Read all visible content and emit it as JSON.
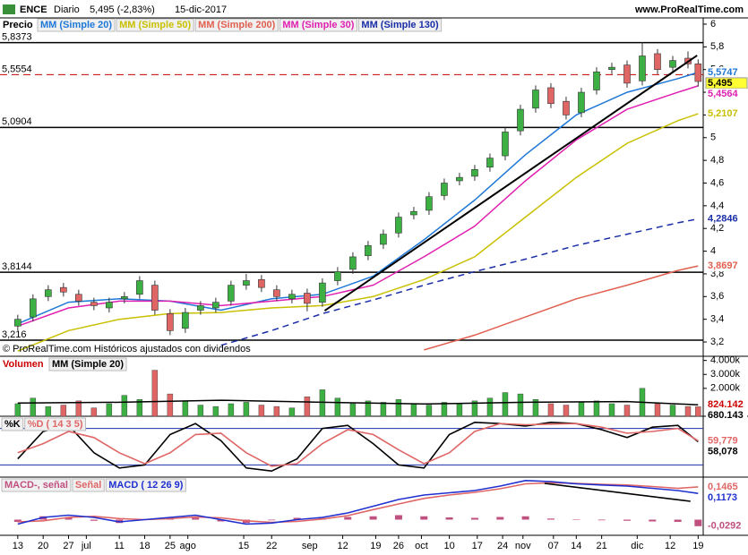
{
  "header": {
    "symbol": "ENCE",
    "period": "Diario",
    "price": "5,495 (-2,83%)",
    "date": "15-dic-2017",
    "site": "www.ProRealTime.com",
    "copyright": "© ProRealTime.com Históricos ajustados con dividendos"
  },
  "x_axis": {
    "xlim": [
      -0.7,
      27.0
    ],
    "xticks": [
      {
        "value": 0,
        "label": "13"
      },
      {
        "value": 1,
        "label": "20"
      },
      {
        "value": 2,
        "label": "27"
      },
      {
        "value": 2.7,
        "label": "jul"
      },
      {
        "value": 4,
        "label": "11"
      },
      {
        "value": 5,
        "label": "18"
      },
      {
        "value": 6,
        "label": "25"
      },
      {
        "value": 6.7,
        "label": "ago"
      },
      {
        "value": 8.9,
        "label": "15"
      },
      {
        "value": 10,
        "label": "22"
      },
      {
        "value": 11.5,
        "label": "sep"
      },
      {
        "value": 12.8,
        "label": "12"
      },
      {
        "value": 14.1,
        "label": "19"
      },
      {
        "value": 15,
        "label": "26"
      },
      {
        "value": 15.9,
        "label": "oct"
      },
      {
        "value": 17,
        "label": "10"
      },
      {
        "value": 18.1,
        "label": "17"
      },
      {
        "value": 19.1,
        "label": "24"
      },
      {
        "value": 19.9,
        "label": "nov"
      },
      {
        "value": 21.1,
        "label": "07"
      },
      {
        "value": 22,
        "label": "14"
      },
      {
        "value": 23,
        "label": "21"
      },
      {
        "value": 24.4,
        "label": "dic"
      },
      {
        "value": 25.7,
        "label": "12"
      },
      {
        "value": 26.8,
        "label": "19"
      }
    ]
  },
  "chart_data": [
    {
      "type": "candlestick",
      "title": "Precio",
      "up_color": "#3cb043",
      "down_color": "#e06666",
      "ylim": [
        3.074,
        6.055
      ],
      "yticks": [
        {
          "value": 3.2,
          "label": "3,2"
        },
        {
          "value": 3.4,
          "label": "3,4"
        },
        {
          "value": 3.6,
          "label": "3,6"
        },
        {
          "value": 3.8,
          "label": "3,8"
        },
        {
          "value": 4,
          "label": "4"
        },
        {
          "value": 4.2,
          "label": "4,2"
        },
        {
          "value": 4.4,
          "label": "4,4"
        },
        {
          "value": 4.6,
          "label": "4,6"
        },
        {
          "value": 4.8,
          "label": "4,8"
        },
        {
          "value": 5,
          "label": "5"
        },
        {
          "value": 5.2,
          "label": "5,2"
        },
        {
          "value": 5.4,
          "label": "5,4"
        },
        {
          "value": 5.6,
          "label": "5,6"
        },
        {
          "value": 5.8,
          "label": "5,8"
        },
        {
          "value": 6,
          "label": "6"
        }
      ],
      "x": [
        0,
        0.6,
        1.2,
        1.8,
        2.4,
        3,
        3.6,
        4.2,
        4.8,
        5.4,
        6,
        6.6,
        7.2,
        7.8,
        8.4,
        9,
        9.6,
        10.2,
        10.8,
        11.4,
        12,
        12.6,
        13.2,
        13.8,
        14.4,
        15,
        15.6,
        16.2,
        16.8,
        17.4,
        18,
        18.6,
        19.2,
        19.8,
        20.4,
        21,
        21.6,
        22.2,
        22.8,
        23.4,
        24,
        24.6,
        25.2,
        25.8,
        26.4,
        26.8
      ],
      "open": [
        3.34,
        3.42,
        3.6,
        3.68,
        3.62,
        3.55,
        3.5,
        3.58,
        3.62,
        3.7,
        3.45,
        3.32,
        3.48,
        3.5,
        3.56,
        3.7,
        3.75,
        3.66,
        3.58,
        3.63,
        3.55,
        3.74,
        3.84,
        3.96,
        4.06,
        4.16,
        4.32,
        4.36,
        4.49,
        4.62,
        4.66,
        4.74,
        4.84,
        5.06,
        5.26,
        5.44,
        5.32,
        5.22,
        5.42,
        5.6,
        5.64,
        5.5,
        5.74,
        5.62,
        5.7,
        5.65
      ],
      "high": [
        3.44,
        3.62,
        3.7,
        3.72,
        3.66,
        3.59,
        3.59,
        3.64,
        3.78,
        3.74,
        3.49,
        3.5,
        3.56,
        3.59,
        3.74,
        3.8,
        3.79,
        3.7,
        3.66,
        3.67,
        3.76,
        3.86,
        3.99,
        4.09,
        4.19,
        4.34,
        4.39,
        4.52,
        4.64,
        4.69,
        4.76,
        4.86,
        5.09,
        5.29,
        5.46,
        5.48,
        5.36,
        5.44,
        5.62,
        5.66,
        5.68,
        5.84,
        5.78,
        5.72,
        5.76,
        5.69
      ],
      "low": [
        3.3,
        3.38,
        3.56,
        3.6,
        3.52,
        3.48,
        3.46,
        3.54,
        3.58,
        3.44,
        3.26,
        3.28,
        3.44,
        3.46,
        3.52,
        3.66,
        3.64,
        3.56,
        3.54,
        3.47,
        3.51,
        3.7,
        3.8,
        3.92,
        4.02,
        4.12,
        4.28,
        4.32,
        4.45,
        4.58,
        4.62,
        4.7,
        4.8,
        5.02,
        5.22,
        5.26,
        5.16,
        5.18,
        5.38,
        5.56,
        5.44,
        5.46,
        5.56,
        5.58,
        5.61,
        5.45
      ],
      "close": [
        3.4,
        3.58,
        3.66,
        3.64,
        3.56,
        3.52,
        3.55,
        3.6,
        3.74,
        3.48,
        3.3,
        3.46,
        3.52,
        3.55,
        3.7,
        3.74,
        3.68,
        3.6,
        3.62,
        3.54,
        3.72,
        3.82,
        3.95,
        4.05,
        4.15,
        4.3,
        4.35,
        4.48,
        4.6,
        4.65,
        4.72,
        4.82,
        5.05,
        5.25,
        5.42,
        5.3,
        5.2,
        5.4,
        5.58,
        5.62,
        5.48,
        5.72,
        5.6,
        5.68,
        5.65,
        5.495
      ],
      "close_label": "5,495",
      "close_label_color": "#ffff33",
      "levels": [
        {
          "value": 5.8373,
          "label": "5,8373",
          "color": "#000000"
        },
        {
          "value": 5.5554,
          "label": "5,5554",
          "color": "#cc0000",
          "dashed": true
        },
        {
          "value": 5.0904,
          "label": "5,0904",
          "color": "#000000"
        },
        {
          "value": 3.8144,
          "label": "3,8144",
          "color": "#000000"
        },
        {
          "value": 3.216,
          "label": "3,216",
          "color": "#000000"
        }
      ],
      "series": [
        {
          "name": "MM (Simple 20)",
          "color": "#1e78d7",
          "x": [
            0,
            2,
            4,
            6,
            8,
            10,
            12,
            14,
            16,
            18,
            20,
            22,
            24,
            26,
            26.8
          ],
          "values": [
            3.36,
            3.55,
            3.58,
            3.56,
            3.48,
            3.58,
            3.62,
            3.78,
            4.1,
            4.45,
            4.85,
            5.2,
            5.4,
            5.52,
            5.5747
          ],
          "value_label": "5,5747"
        },
        {
          "name": "MM (Simple 50)",
          "color": "#c8c000",
          "x": [
            0,
            2,
            4,
            6,
            8,
            10,
            12,
            14,
            16,
            18,
            20,
            22,
            24,
            26,
            26.8
          ],
          "values": [
            3.12,
            3.3,
            3.4,
            3.45,
            3.46,
            3.5,
            3.52,
            3.6,
            3.75,
            3.95,
            4.3,
            4.65,
            4.95,
            5.15,
            5.2107
          ],
          "value_label": "5,2107"
        },
        {
          "name": "MM (Simple 200)",
          "color": "#e06050",
          "x": [
            0,
            2,
            4,
            6,
            8,
            10,
            12,
            14,
            16,
            18,
            20,
            22,
            24,
            26,
            26.8
          ],
          "values": [
            null,
            null,
            null,
            null,
            null,
            null,
            null,
            null,
            3.13,
            3.26,
            3.42,
            3.58,
            3.7,
            3.83,
            3.8697
          ],
          "value_label": "3,8697"
        },
        {
          "name": "MM (Simple 30)",
          "color": "#e020b0",
          "x": [
            0,
            2,
            4,
            6,
            8,
            10,
            12,
            14,
            16,
            18,
            20,
            22,
            24,
            26,
            26.8
          ],
          "values": [
            3.34,
            3.5,
            3.56,
            3.56,
            3.52,
            3.56,
            3.6,
            3.7,
            3.95,
            4.22,
            4.62,
            4.98,
            5.25,
            5.4,
            5.4564
          ],
          "value_label": "5,4564"
        },
        {
          "name": "MM (Simple 130)",
          "color": "#1a2ea8",
          "dashed": true,
          "x": [
            0,
            2,
            4,
            6,
            8,
            10,
            12,
            14,
            16,
            18,
            20,
            22,
            24,
            26,
            26.8
          ],
          "values": [
            null,
            null,
            null,
            null,
            3.17,
            3.3,
            3.45,
            3.57,
            3.7,
            3.82,
            3.93,
            4.05,
            4.15,
            4.25,
            4.2846
          ],
          "value_label": "4,2846"
        }
      ],
      "trendline": {
        "x": [
          12.09,
          26.76
        ],
        "y": [
          3.476,
          5.724
        ]
      }
    },
    {
      "type": "bar",
      "title": "Volumen",
      "ylim": [
        0,
        4300000
      ],
      "yticks": [
        {
          "value": 2000000,
          "label": "2.000k"
        },
        {
          "value": 3000000,
          "label": "3.000k"
        },
        {
          "value": 4000000,
          "label": "4.000k"
        }
      ],
      "values": [
        900000,
        1300000,
        700000,
        800000,
        1100000,
        600000,
        900000,
        1500000,
        1200000,
        3300000,
        1600000,
        1100000,
        800000,
        700000,
        900000,
        1000000,
        800000,
        700000,
        600000,
        1400000,
        1900000,
        1300000,
        900000,
        1100000,
        1000000,
        1200000,
        900000,
        800000,
        1000000,
        900000,
        1100000,
        1300000,
        1700000,
        1600000,
        1200000,
        900000,
        800000,
        1000000,
        1100000,
        900000,
        800000,
        2000000,
        900000,
        800000,
        700000,
        680143
      ],
      "last_label": "680.143",
      "series": [
        {
          "name": "MM (Simple 20)",
          "color": "#000000",
          "x": [
            0,
            4,
            8,
            12,
            16,
            20,
            24,
            26.8
          ],
          "values": [
            950000,
            1000000,
            1150000,
            1000000,
            880000,
            1000000,
            1050000,
            824142
          ],
          "value_label": "824.142",
          "label_color": "#cc0000"
        }
      ]
    },
    {
      "type": "line",
      "ylim": [
        0,
        100
      ],
      "bands": [
        20,
        80
      ],
      "x": [
        0,
        1,
        2,
        3,
        4,
        5,
        6,
        7,
        8,
        9,
        10,
        11,
        12,
        13,
        14,
        15,
        16,
        17,
        18,
        19,
        20,
        21,
        22,
        23,
        24,
        25,
        26,
        26.8
      ],
      "series": [
        {
          "name": "%K",
          "color": "#000000",
          "values": [
            30,
            75,
            85,
            40,
            15,
            20,
            70,
            88,
            60,
            15,
            10,
            30,
            80,
            85,
            55,
            20,
            15,
            70,
            90,
            88,
            84,
            90,
            88,
            78,
            65,
            82,
            85,
            58.078
          ],
          "value_label": "58,078"
        },
        {
          "name": "%D ( 14 3 5)",
          "color": "#e06666",
          "values": [
            40,
            55,
            75,
            65,
            40,
            22,
            40,
            70,
            72,
            40,
            18,
            22,
            55,
            78,
            70,
            45,
            22,
            40,
            75,
            88,
            86,
            87,
            88,
            82,
            72,
            75,
            80,
            59.779
          ],
          "value_label": "59,779"
        }
      ]
    },
    {
      "type": "line",
      "ylim": [
        -0.07,
        0.19
      ],
      "x": [
        0,
        1,
        2,
        3,
        4,
        5,
        6,
        7,
        8,
        9,
        10,
        11,
        12,
        13,
        14,
        15,
        16,
        17,
        18,
        19,
        20,
        21,
        22,
        23,
        24,
        25,
        26,
        26.8
      ],
      "series": [
        {
          "name": "MACD-, señal",
          "type": "bar",
          "color": "#c05080",
          "values": [
            -0.01,
            0.015,
            0.01,
            -0.005,
            -0.015,
            0,
            0.005,
            0.008,
            -0.008,
            -0.015,
            -0.003,
            0.008,
            0.007,
            0.012,
            0.015,
            0.02,
            0.015,
            0.01,
            0.008,
            0.012,
            0.015,
            0.005,
            -0.002,
            -0.003,
            -0.005,
            -0.008,
            -0.01,
            -0.0292
          ],
          "value_label": "-0,0292"
        },
        {
          "name": "Señal",
          "color": "#e06666",
          "values": [
            -0.01,
            -0.005,
            0.01,
            0.015,
            0.005,
            0,
            0.005,
            0.012,
            0.008,
            -0.005,
            -0.012,
            -0.008,
            0.003,
            0.018,
            0.045,
            0.07,
            0.095,
            0.11,
            0.122,
            0.138,
            0.16,
            0.165,
            0.162,
            0.158,
            0.155,
            0.148,
            0.14,
            0.1465
          ],
          "value_label": "0,1465"
        },
        {
          "name": "MACD ( 12 26 9)",
          "color": "#2030d0",
          "values": [
            -0.02,
            0.01,
            0.02,
            0.01,
            -0.01,
            0,
            0.01,
            0.02,
            0,
            -0.02,
            -0.015,
            0,
            0.01,
            0.03,
            0.06,
            0.09,
            0.11,
            0.12,
            0.13,
            0.15,
            0.175,
            0.17,
            0.16,
            0.155,
            0.15,
            0.14,
            0.13,
            0.1173
          ],
          "value_label": "0,1173"
        }
      ],
      "trendline": {
        "x": [
          20.75,
          26.5
        ],
        "y": [
          0.162,
          0.082
        ]
      }
    }
  ]
}
